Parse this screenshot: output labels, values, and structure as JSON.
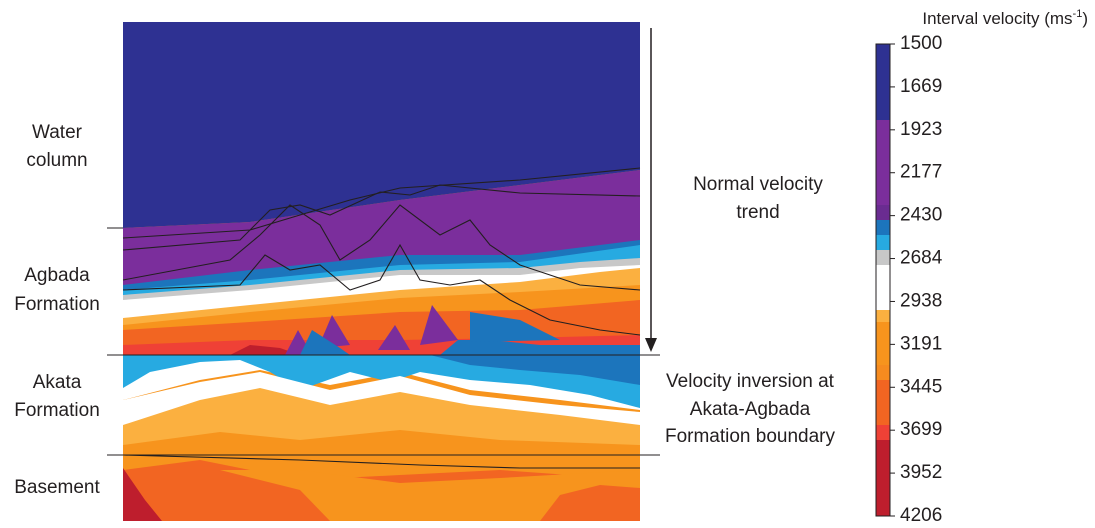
{
  "labels_left": [
    [
      "Water",
      "column"
    ],
    [
      "Agbada",
      "Formation"
    ],
    [
      "Akata",
      "Formation"
    ],
    [
      "Basement"
    ]
  ],
  "labels_right": {
    "normal_trend": [
      "Normal velocity",
      "trend"
    ],
    "inversion": [
      "Velocity inversion at",
      "Akata-Agbada",
      "Formation boundary"
    ]
  },
  "colorbar": {
    "title": [
      "Interval velocity (ms",
      "-1",
      ")"
    ],
    "ticks": [
      1500,
      1669,
      1923,
      2177,
      2430,
      2684,
      2938,
      3191,
      3445,
      3699,
      3952,
      4206
    ]
  }
}
